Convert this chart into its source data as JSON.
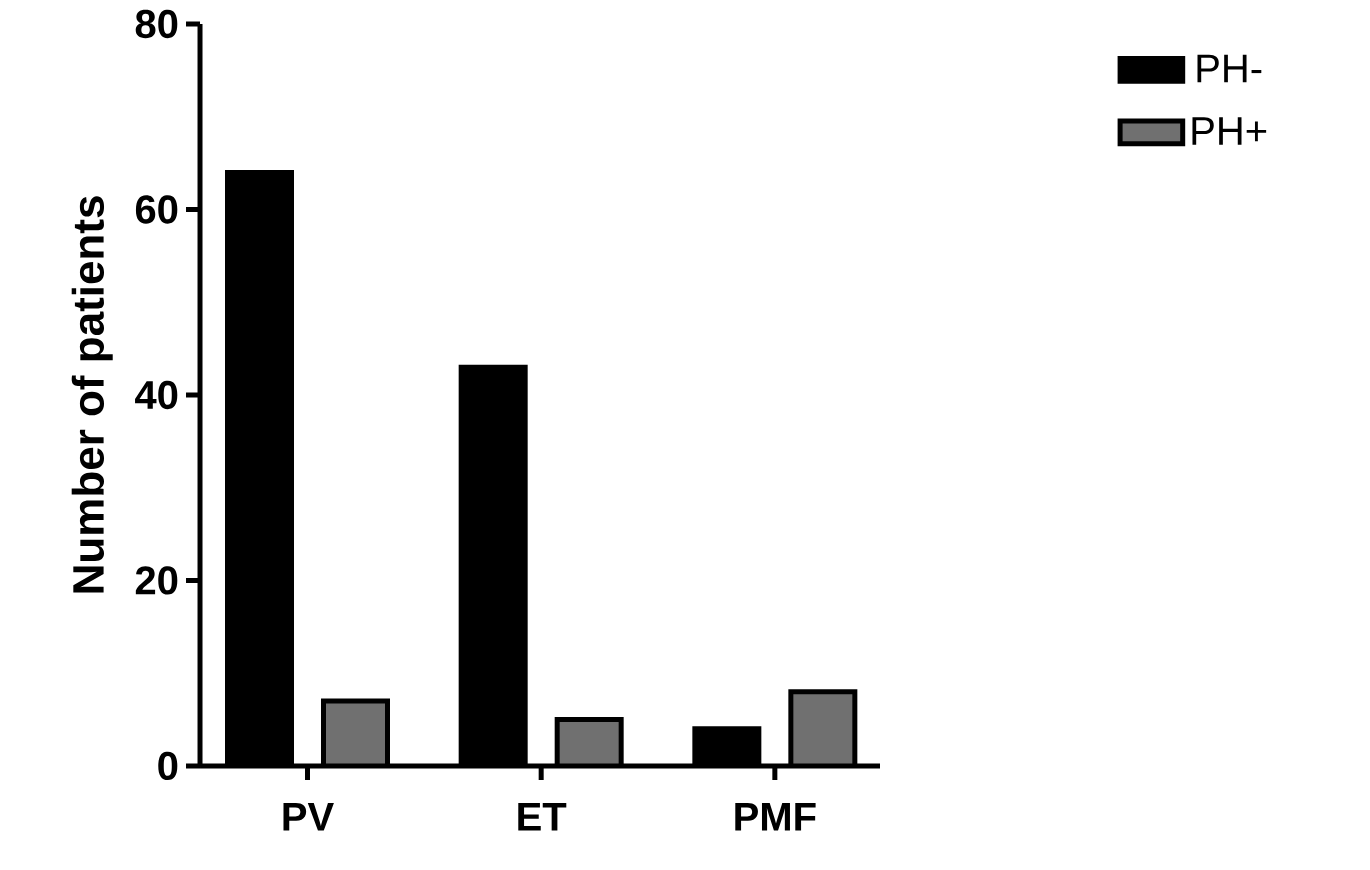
{
  "chart_data": {
    "type": "bar",
    "ylabel": "Number of patients",
    "categories": [
      "PV",
      "ET",
      "PMF"
    ],
    "series": [
      {
        "name": "PH-",
        "color": "#000000",
        "values": [
          64,
          43,
          4
        ]
      },
      {
        "name": "PH+",
        "color": "#707070",
        "values": [
          7,
          5,
          8
        ]
      }
    ],
    "ylim": [
      0,
      80
    ],
    "yticks": [
      0,
      20,
      40,
      60,
      80
    ],
    "legend": "top right",
    "grid": false
  }
}
